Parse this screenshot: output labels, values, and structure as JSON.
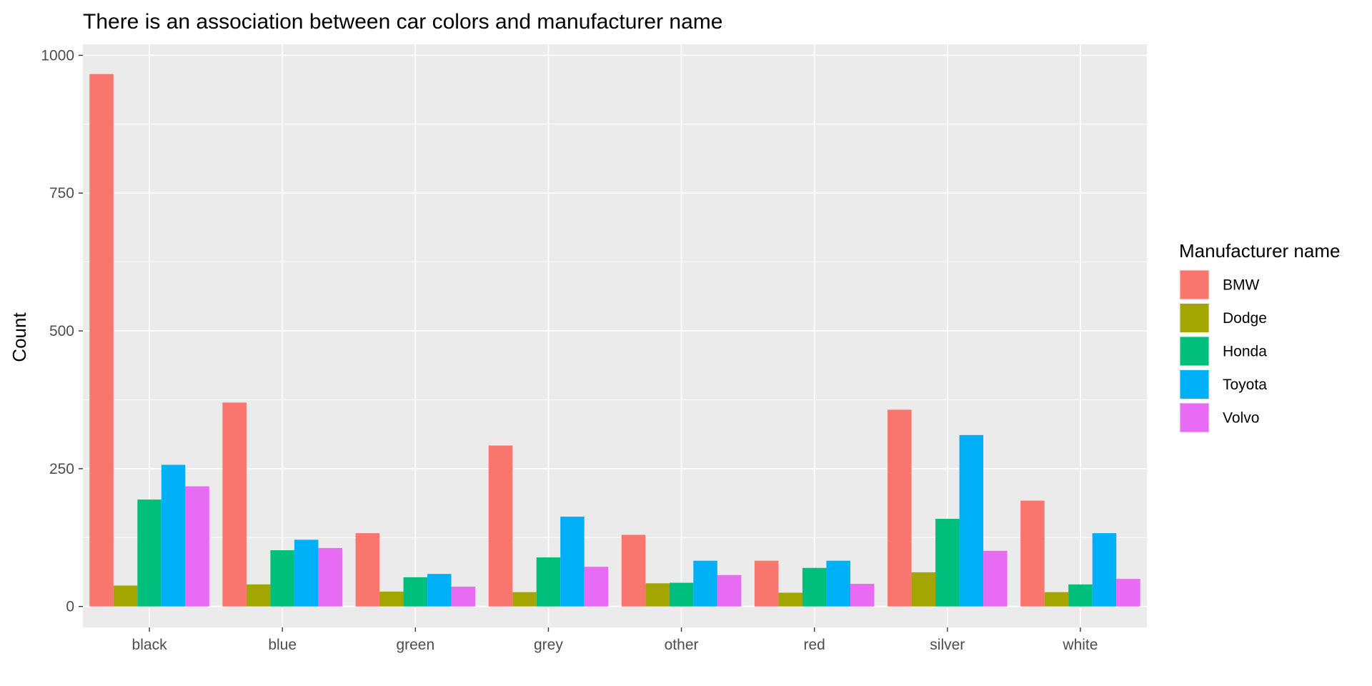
{
  "chart_data": {
    "type": "bar",
    "title": "There is an association between car colors and manufacturer name",
    "xlabel": "",
    "ylabel": "Count",
    "categories": [
      "black",
      "blue",
      "green",
      "grey",
      "other",
      "red",
      "silver",
      "white"
    ],
    "ylim": [
      -38,
      1020
    ],
    "yticks": [
      0,
      250,
      500,
      750,
      1000
    ],
    "yticklabels": [
      "0",
      "250",
      "500",
      "750",
      "1000"
    ],
    "grid": true,
    "legend": {
      "title": "Manufacturer name",
      "position": "right"
    },
    "series": [
      {
        "name": "BMW",
        "color": "#F8766D",
        "values": [
          966,
          370,
          133,
          292,
          130,
          83,
          357,
          192
        ]
      },
      {
        "name": "Dodge",
        "color": "#A3A500",
        "values": [
          38,
          40,
          27,
          26,
          42,
          25,
          62,
          26
        ]
      },
      {
        "name": "Honda",
        "color": "#00BF7D",
        "values": [
          194,
          102,
          53,
          89,
          43,
          70,
          159,
          40
        ]
      },
      {
        "name": "Toyota",
        "color": "#00B0F6",
        "values": [
          257,
          121,
          59,
          163,
          83,
          83,
          311,
          133
        ]
      },
      {
        "name": "Volvo",
        "color": "#E76BF3",
        "values": [
          218,
          106,
          36,
          72,
          57,
          41,
          101,
          50
        ]
      }
    ],
    "panel_background": "#EBEBEB",
    "grid_color": "#FFFFFF"
  }
}
